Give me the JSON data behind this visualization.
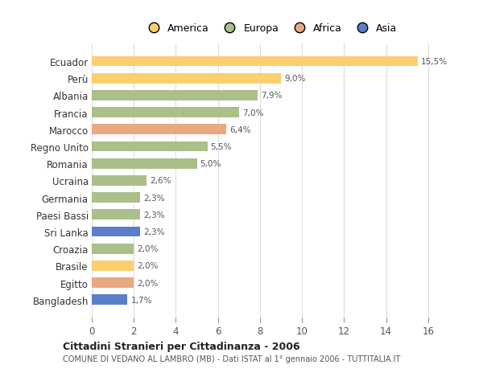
{
  "countries": [
    "Ecuador",
    "Perù",
    "Albania",
    "Francia",
    "Marocco",
    "Regno Unito",
    "Romania",
    "Ucraina",
    "Germania",
    "Paesi Bassi",
    "Sri Lanka",
    "Croazia",
    "Brasile",
    "Egitto",
    "Bangladesh"
  ],
  "values": [
    15.5,
    9.0,
    7.9,
    7.0,
    6.4,
    5.5,
    5.0,
    2.6,
    2.3,
    2.3,
    2.3,
    2.0,
    2.0,
    2.0,
    1.7
  ],
  "labels": [
    "15,5%",
    "9,0%",
    "7,9%",
    "7,0%",
    "6,4%",
    "5,5%",
    "5,0%",
    "2,6%",
    "2,3%",
    "2,3%",
    "2,3%",
    "2,0%",
    "2,0%",
    "2,0%",
    "1,7%"
  ],
  "colors": [
    "#FBCF6F",
    "#FBCF6F",
    "#AABF8A",
    "#AABF8A",
    "#E8A882",
    "#AABF8A",
    "#AABF8A",
    "#AABF8A",
    "#AABF8A",
    "#AABF8A",
    "#5B7EC9",
    "#AABF8A",
    "#FBCF6F",
    "#E8A882",
    "#5B7EC9"
  ],
  "legend_labels": [
    "America",
    "Europa",
    "Africa",
    "Asia"
  ],
  "legend_colors": [
    "#FBCF6F",
    "#AABF8A",
    "#E8A882",
    "#5B7EC9"
  ],
  "title": "Cittadini Stranieri per Cittadinanza - 2006",
  "subtitle": "COMUNE DI VEDANO AL LAMBRO (MB) - Dati ISTAT al 1° gennaio 2006 - TUTTITALIA.IT",
  "xlim": [
    0,
    17
  ],
  "xticks": [
    0,
    2,
    4,
    6,
    8,
    10,
    12,
    14,
    16
  ],
  "background_color": "#ffffff",
  "grid_color": "#dddddd"
}
